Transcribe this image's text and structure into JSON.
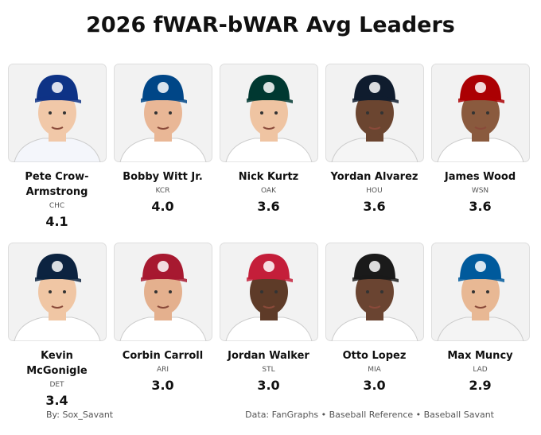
{
  "header": {
    "title": "2026 fWAR-bWAR Avg Leaders"
  },
  "players": [
    {
      "name": "Pete Crow-Armstrong",
      "team": "CHC",
      "value": "4.1"
    },
    {
      "name": "Bobby Witt Jr.",
      "team": "KCR",
      "value": "4.0"
    },
    {
      "name": "Nick Kurtz",
      "team": "OAK",
      "value": "3.6"
    },
    {
      "name": "Yordan Alvarez",
      "team": "HOU",
      "value": "3.6"
    },
    {
      "name": "James Wood",
      "team": "WSN",
      "value": "3.6"
    },
    {
      "name": "Kevin McGonigle",
      "team": "DET",
      "value": "3.4"
    },
    {
      "name": "Corbin Carroll",
      "team": "ARI",
      "value": "3.0"
    },
    {
      "name": "Jordan Walker",
      "team": "STL",
      "value": "3.0"
    },
    {
      "name": "Otto Lopez",
      "team": "MIA",
      "value": "3.0"
    },
    {
      "name": "Max Muncy",
      "team": "LAD",
      "value": "2.9"
    }
  ],
  "footer": {
    "credit": "By: Sox_Savant",
    "sources": "Data: FanGraphs • Baseball Reference • Baseball Savant"
  }
}
